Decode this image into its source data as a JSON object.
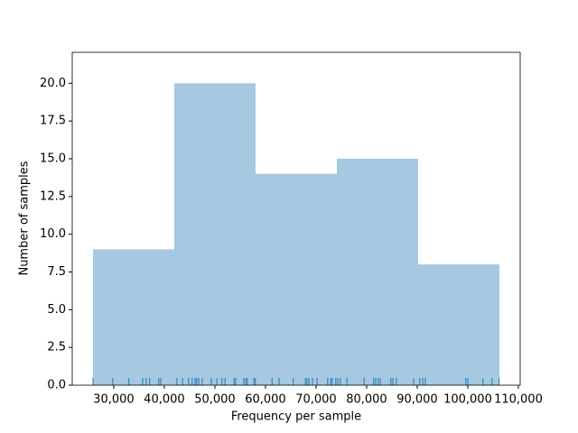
{
  "chart_data": {
    "type": "histogram",
    "xlabel": "Frequency per sample",
    "ylabel": "Number of samples",
    "bins": [
      25900,
      41970,
      58040,
      74110,
      90180,
      106250
    ],
    "values": [
      9,
      20,
      14,
      15,
      8
    ],
    "color": "#a6c8e0",
    "rug": [
      25900,
      29800,
      33000,
      35700,
      36400,
      37100,
      38900,
      39300,
      42500,
      43600,
      44800,
      45500,
      46100,
      46400,
      46800,
      47500,
      49300,
      50400,
      51400,
      52000,
      53800,
      54100,
      55700,
      56100,
      56400,
      57700,
      58000,
      61300,
      62700,
      65500,
      67900,
      68200,
      68600,
      69300,
      70200,
      72300,
      72900,
      73200,
      73900,
      74300,
      74800,
      76100,
      79500,
      81400,
      81800,
      82300,
      82700,
      84800,
      85200,
      85900,
      89300,
      90500,
      91100,
      91600,
      99600,
      100000,
      103000,
      104800,
      106200
    ],
    "rug_color": "#1f77b4",
    "xlim": [
      21800,
      110360
    ],
    "ylim": [
      0,
      22.05
    ],
    "xticks": [
      {
        "value": 30000,
        "label": "30,000"
      },
      {
        "value": 40000,
        "label": "40,000"
      },
      {
        "value": 50000,
        "label": "50,000"
      },
      {
        "value": 60000,
        "label": "60,000"
      },
      {
        "value": 70000,
        "label": "70,000"
      },
      {
        "value": 80000,
        "label": "80,000"
      },
      {
        "value": 90000,
        "label": "90,000"
      },
      {
        "value": 100000,
        "label": "100,000"
      },
      {
        "value": 110000,
        "label": "110,000"
      }
    ],
    "yticks": [
      {
        "value": 0,
        "label": "0.0"
      },
      2.5,
      {
        "value": 5,
        "label": "5.0"
      },
      7.5,
      {
        "value": 10,
        "label": "10.0"
      },
      12.5,
      {
        "value": 15,
        "label": "15.0"
      },
      17.5,
      {
        "value": 20,
        "label": "20.0"
      }
    ]
  }
}
